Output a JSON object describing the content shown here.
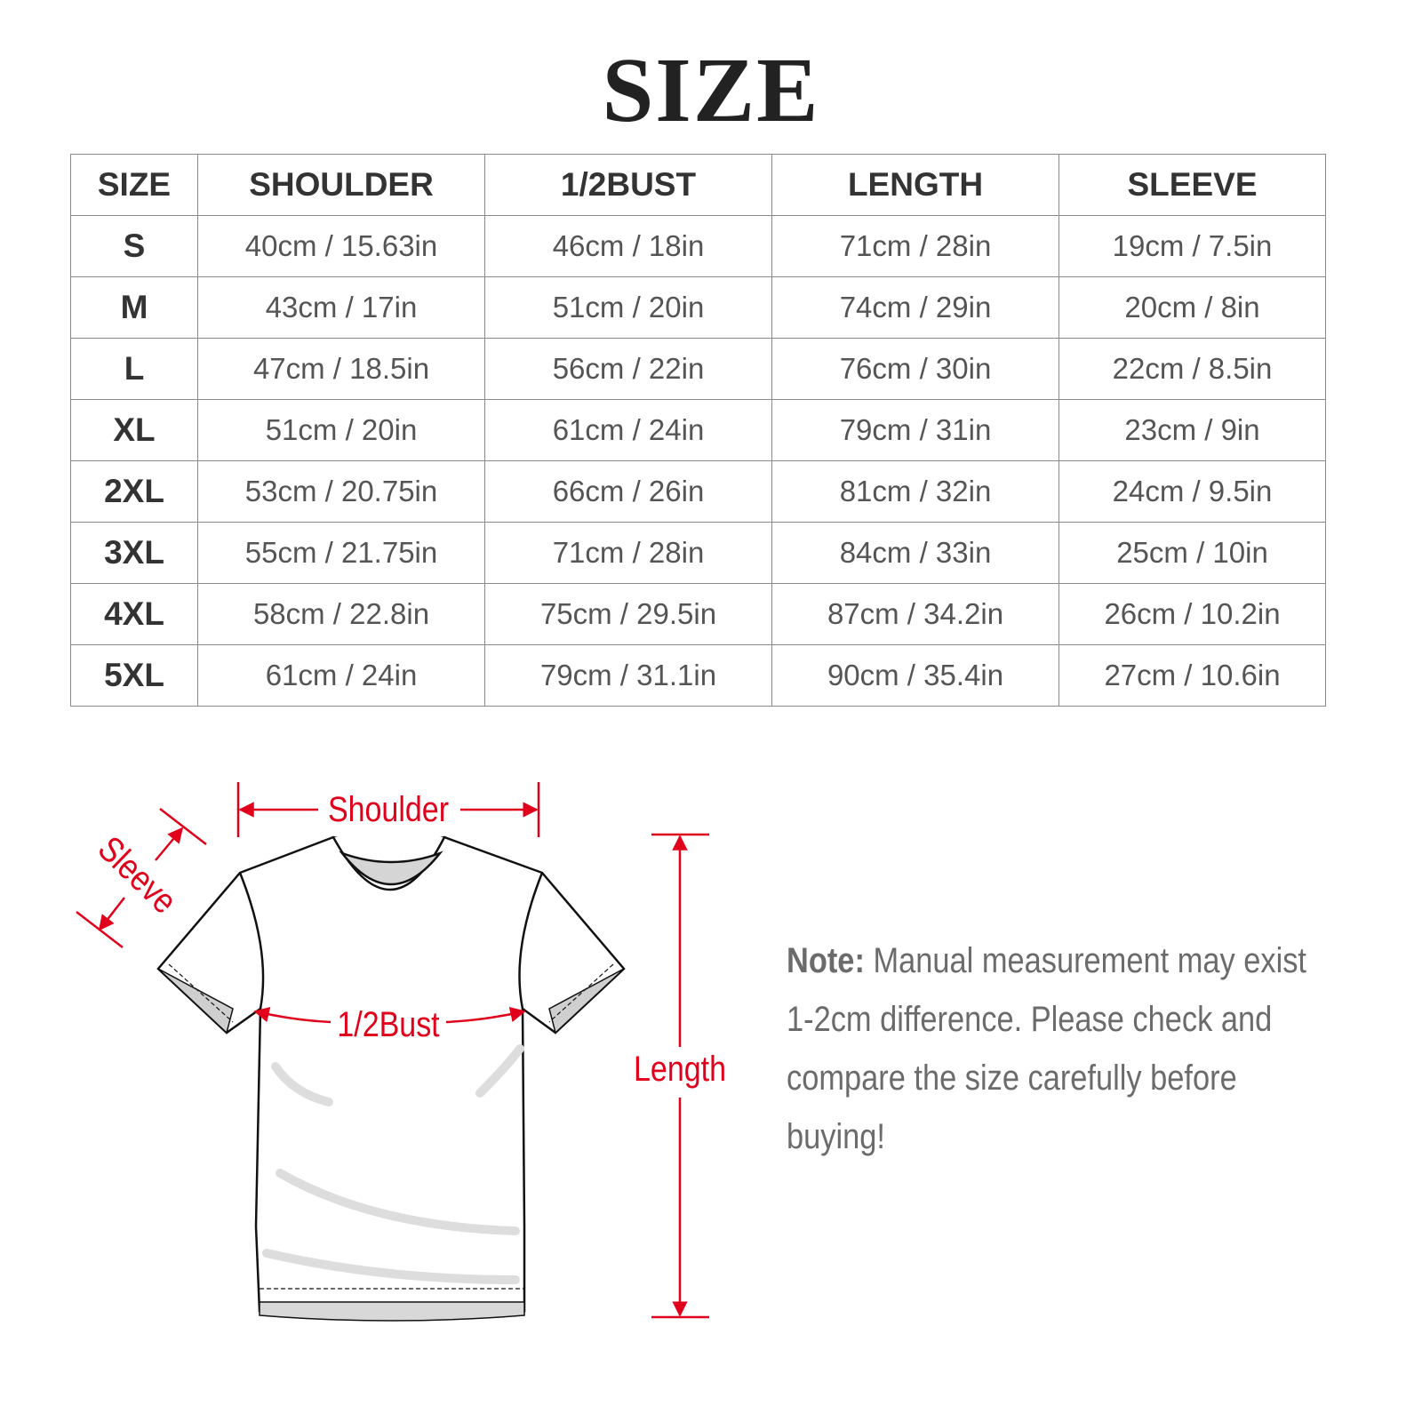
{
  "title": "SIZE",
  "table": {
    "headers": [
      "SIZE",
      "SHOULDER",
      "1/2BUST",
      "LENGTH",
      "SLEEVE"
    ],
    "rows": [
      [
        "S",
        "40cm / 15.63in",
        "46cm / 18in",
        "71cm / 28in",
        "19cm / 7.5in"
      ],
      [
        "M",
        "43cm / 17in",
        "51cm / 20in",
        "74cm / 29in",
        "20cm / 8in"
      ],
      [
        "L",
        "47cm / 18.5in",
        "56cm / 22in",
        "76cm / 30in",
        "22cm / 8.5in"
      ],
      [
        "XL",
        "51cm / 20in",
        "61cm / 24in",
        "79cm / 31in",
        "23cm / 9in"
      ],
      [
        "2XL",
        "53cm / 20.75in",
        "66cm / 26in",
        "81cm / 32in",
        "24cm / 9.5in"
      ],
      [
        "3XL",
        "55cm / 21.75in",
        "71cm / 28in",
        "84cm / 33in",
        "25cm / 10in"
      ],
      [
        "4XL",
        "58cm / 22.8in",
        "75cm / 29.5in",
        "87cm / 34.2in",
        "26cm / 10.2in"
      ],
      [
        "5XL",
        "61cm / 24in",
        "79cm / 31.1in",
        "90cm / 35.4in",
        "27cm / 10.6in"
      ]
    ]
  },
  "diagram": {
    "labels": {
      "shoulder": "Shoulder",
      "sleeve": "Sleeve",
      "bust": "1/2Bust",
      "length": "Length"
    },
    "accent_color": "#e0001b"
  },
  "note": {
    "label": "Note:",
    "text": " Manual measurement may exist 1-2cm difference. Please check and compare the size carefully before buying!"
  }
}
